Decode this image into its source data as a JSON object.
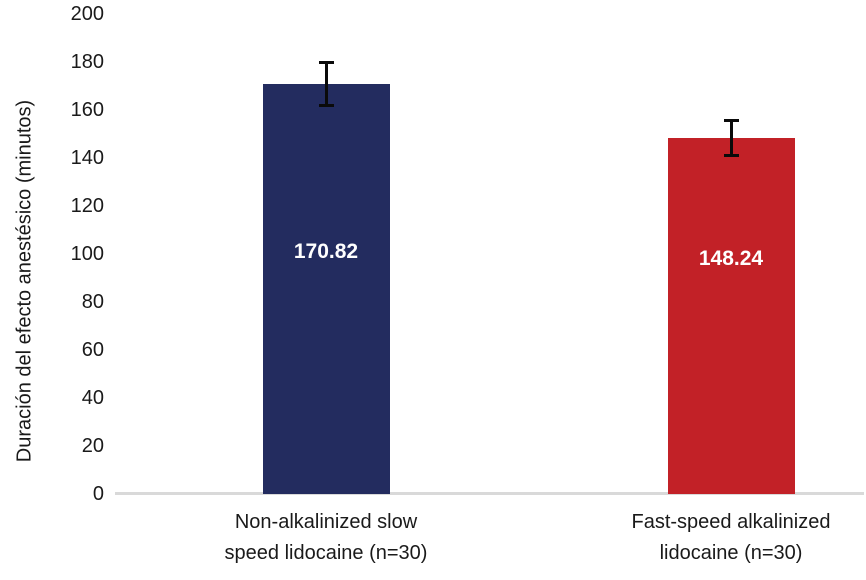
{
  "chart_data": {
    "type": "bar",
    "title": "",
    "xlabel": "",
    "ylabel": "Duración del efecto anestésico (minutos)",
    "ylim": [
      0,
      200
    ],
    "ytick_step": 20,
    "grid": false,
    "legend": false,
    "categories": [
      "Non-alkalinized slow speed lidocaine (n=30)",
      "Fast-speed alkalinized lidocaine (n=30)"
    ],
    "category_lines": [
      [
        "Non-alkalinized slow",
        "speed lidocaine (n=30)"
      ],
      [
        "Fast-speed alkalinized",
        "lidocaine (n=30)"
      ]
    ],
    "values": [
      170.82,
      148.24
    ],
    "value_labels": [
      "170.82",
      "148.24"
    ],
    "error_bars": [
      9.0,
      7.5
    ],
    "bar_colors": [
      "#232C5F",
      "#C22127"
    ],
    "value_label_color": "#FFFFFF",
    "axis_line_color": "#D9D9D9",
    "error_bar_color": "#0A0A0A",
    "text_color": "#1A1A1A",
    "background_color": "#FFFFFF"
  }
}
